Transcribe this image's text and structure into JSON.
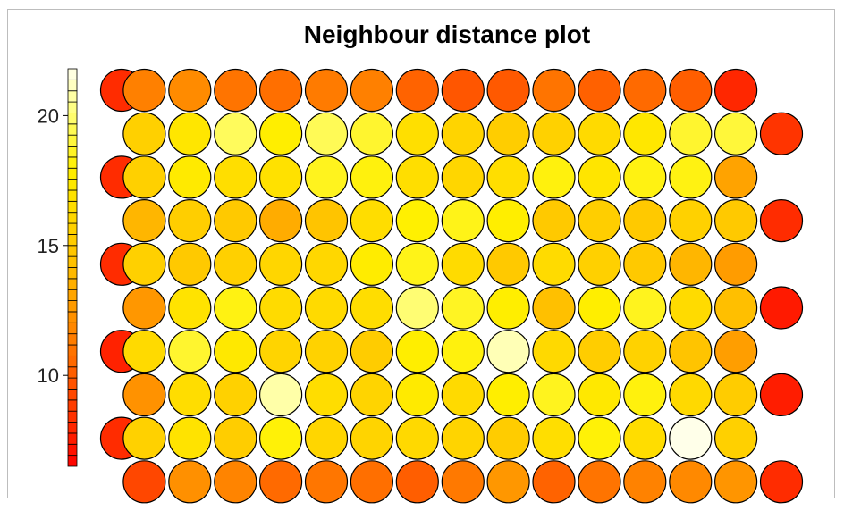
{
  "chart_data": {
    "type": "heatmap",
    "subtype": "som-hexagonal-neighbour-distance",
    "title": "Neighbour distance plot",
    "grid": {
      "columns": 15,
      "rows": 10,
      "topology": "hexagonal"
    },
    "colorbar": {
      "min": 6.5,
      "max": 21.8,
      "ticks": [
        10,
        15,
        20
      ],
      "palette": "heat (red-orange-yellow-white)"
    },
    "rows_top_to_bottom": [
      [
        8.2,
        11.5,
        12.0,
        11.0,
        10.8,
        11.3,
        11.5,
        10.3,
        9.8,
        9.9,
        11.0,
        10.2,
        10.6,
        10.1,
        8.0
      ],
      [
        15.5,
        17.2,
        19.6,
        17.8,
        19.5,
        18.8,
        16.7,
        15.8,
        15.3,
        15.6,
        16.3,
        17.3,
        18.8,
        19.0,
        8.5
      ],
      [
        8.2,
        15.5,
        17.5,
        16.6,
        16.8,
        18.5,
        18.2,
        16.6,
        16.0,
        16.6,
        18.2,
        17.1,
        18.3,
        18.3,
        13.0
      ],
      [
        13.8,
        15.4,
        15.0,
        13.4,
        14.6,
        16.5,
        18.0,
        18.4,
        17.8,
        15.0,
        15.4,
        15.0,
        15.6,
        15.0,
        8.2
      ],
      [
        8.2,
        15.5,
        15.0,
        15.5,
        16.0,
        16.1,
        17.7,
        18.4,
        16.4,
        15.0,
        16.4,
        15.5,
        15.0,
        13.8,
        12.7
      ],
      [
        12.5,
        17.0,
        18.3,
        16.4,
        16.3,
        16.5,
        20.0,
        18.6,
        17.8,
        14.3,
        17.8,
        18.5,
        16.4,
        14.2,
        7.5
      ],
      [
        7.8,
        16.3,
        18.8,
        17.4,
        15.8,
        15.7,
        15.2,
        17.8,
        18.2,
        21.0,
        16.2,
        15.3,
        15.7,
        14.6,
        12.8
      ],
      [
        12.3,
        16.5,
        15.6,
        20.8,
        16.5,
        15.8,
        17.5,
        16.3,
        17.8,
        18.5,
        17.4,
        18.2,
        16.2,
        15.2,
        7.6
      ],
      [
        8.2,
        15.6,
        17.0,
        15.3,
        18.1,
        16.0,
        15.8,
        16.2,
        15.8,
        15.2,
        16.6,
        18.1,
        16.5,
        21.7,
        15.5
      ],
      [
        9.2,
        12.2,
        11.7,
        10.6,
        11.1,
        10.8,
        10.1,
        11.2,
        12.5,
        10.3,
        11.0,
        11.6,
        11.9,
        12.4,
        8.2
      ]
    ]
  }
}
